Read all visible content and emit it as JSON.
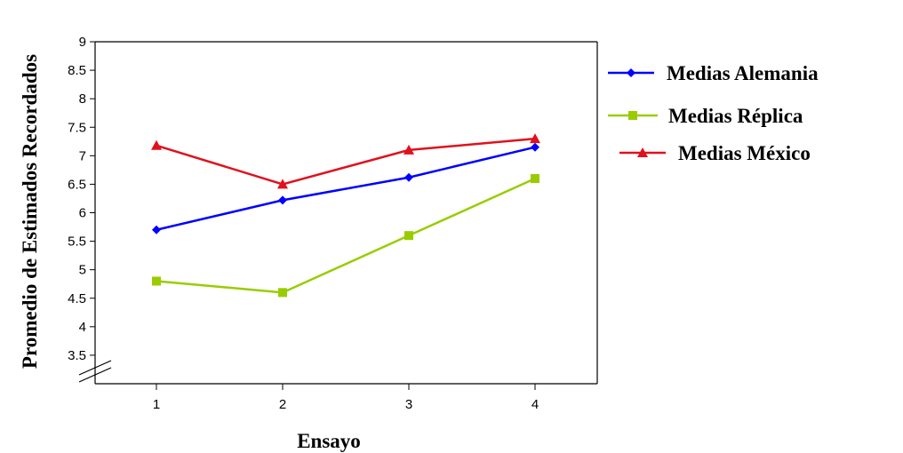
{
  "chart_data": {
    "type": "line",
    "title": "",
    "xlabel": "Ensayo",
    "ylabel": "Promedio de Estimados Recordados",
    "categories": [
      "1",
      "2",
      "3",
      "4"
    ],
    "y_ticks": [
      "3.5",
      "4",
      "4.5",
      "5",
      "5.5",
      "6",
      "6.5",
      "7",
      "7.5",
      "8",
      "8.5",
      "9"
    ],
    "ylim": [
      3.0,
      9.0
    ],
    "y_axis_break": true,
    "legend_position": "right",
    "grid": false,
    "series": [
      {
        "name": "Medias Alemania",
        "color": "#0000ff",
        "marker": "diamond",
        "values": [
          5.7,
          6.22,
          6.62,
          7.15
        ]
      },
      {
        "name": "Medias Réplica",
        "color": "#99cc00",
        "marker": "square",
        "values": [
          4.8,
          4.6,
          5.6,
          6.6
        ]
      },
      {
        "name": "Medias México",
        "color": "#e0111d",
        "marker": "triangle",
        "values": [
          7.18,
          6.5,
          7.1,
          7.3
        ]
      }
    ]
  }
}
